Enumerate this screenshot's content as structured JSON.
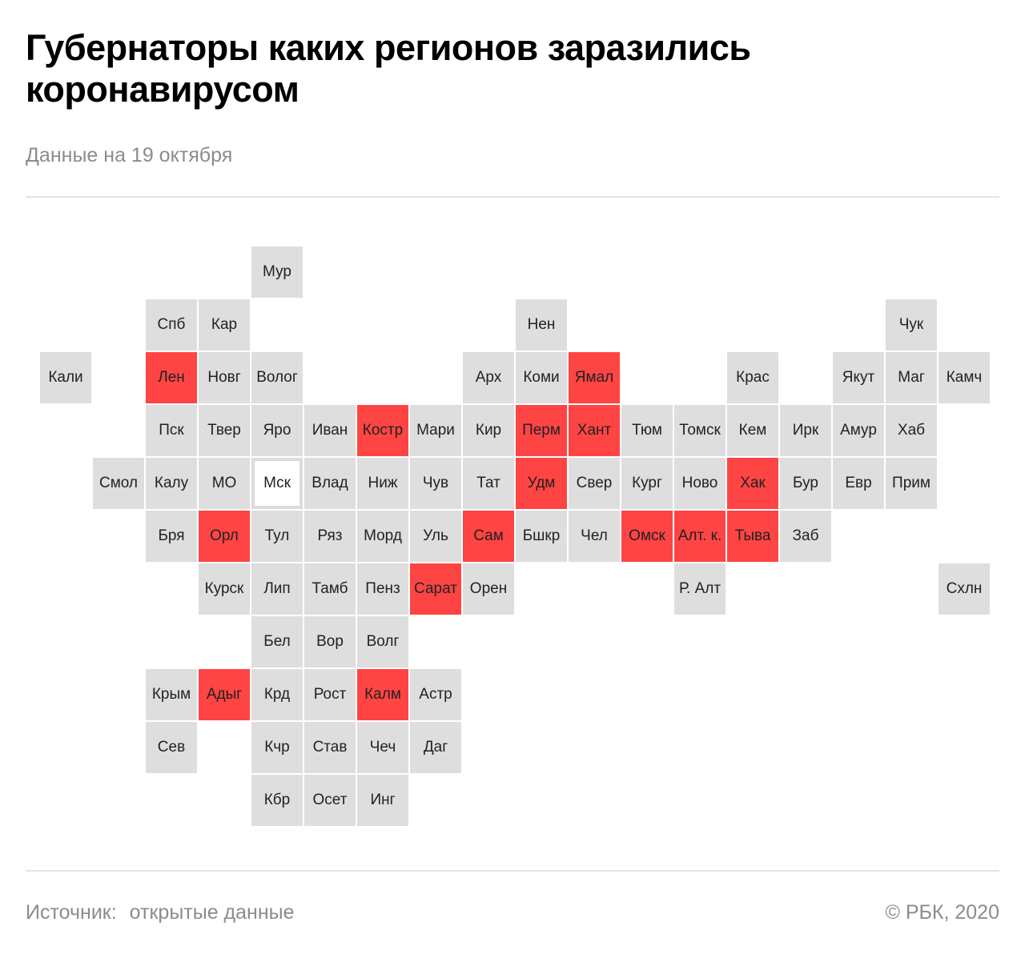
{
  "header": {
    "title": "Губернаторы каких регионов заразились коронавирусом",
    "subtitle": "Данные на 19 октября"
  },
  "colors": {
    "infected": "#ff4444",
    "default": "#dedede"
  },
  "footer": {
    "source_label": "Источник:",
    "source_value": "открытые данные",
    "copyright": "© РБК, 2020"
  },
  "regions": [
    {
      "label": "Мур",
      "row": 0,
      "col": 4,
      "infected": false
    },
    {
      "label": "Спб",
      "row": 1,
      "col": 2,
      "infected": false
    },
    {
      "label": "Кар",
      "row": 1,
      "col": 3,
      "infected": false
    },
    {
      "label": "Нен",
      "row": 1,
      "col": 9,
      "infected": false
    },
    {
      "label": "Чук",
      "row": 1,
      "col": 16,
      "infected": false
    },
    {
      "label": "Кали",
      "row": 2,
      "col": 0,
      "infected": false
    },
    {
      "label": "Лен",
      "row": 2,
      "col": 2,
      "infected": true
    },
    {
      "label": "Новг",
      "row": 2,
      "col": 3,
      "infected": false
    },
    {
      "label": "Волог",
      "row": 2,
      "col": 4,
      "infected": false
    },
    {
      "label": "Арх",
      "row": 2,
      "col": 8,
      "infected": false
    },
    {
      "label": "Коми",
      "row": 2,
      "col": 9,
      "infected": false
    },
    {
      "label": "Ямал",
      "row": 2,
      "col": 10,
      "infected": true
    },
    {
      "label": "Крас",
      "row": 2,
      "col": 13,
      "infected": false
    },
    {
      "label": "Якут",
      "row": 2,
      "col": 15,
      "infected": false
    },
    {
      "label": "Маг",
      "row": 2,
      "col": 16,
      "infected": false
    },
    {
      "label": "Камч",
      "row": 2,
      "col": 17,
      "infected": false
    },
    {
      "label": "Пск",
      "row": 3,
      "col": 2,
      "infected": false
    },
    {
      "label": "Твер",
      "row": 3,
      "col": 3,
      "infected": false
    },
    {
      "label": "Яро",
      "row": 3,
      "col": 4,
      "infected": false
    },
    {
      "label": "Иван",
      "row": 3,
      "col": 5,
      "infected": false
    },
    {
      "label": "Костр",
      "row": 3,
      "col": 6,
      "infected": true
    },
    {
      "label": "Мари",
      "row": 3,
      "col": 7,
      "infected": false
    },
    {
      "label": "Кир",
      "row": 3,
      "col": 8,
      "infected": false
    },
    {
      "label": "Перм",
      "row": 3,
      "col": 9,
      "infected": true
    },
    {
      "label": "Хант",
      "row": 3,
      "col": 10,
      "infected": true
    },
    {
      "label": "Тюм",
      "row": 3,
      "col": 11,
      "infected": false
    },
    {
      "label": "Томск",
      "row": 3,
      "col": 12,
      "infected": false
    },
    {
      "label": "Кем",
      "row": 3,
      "col": 13,
      "infected": false
    },
    {
      "label": "Ирк",
      "row": 3,
      "col": 14,
      "infected": false
    },
    {
      "label": "Амур",
      "row": 3,
      "col": 15,
      "infected": false
    },
    {
      "label": "Хаб",
      "row": 3,
      "col": 16,
      "infected": false
    },
    {
      "label": "Смол",
      "row": 4,
      "col": 1,
      "infected": false
    },
    {
      "label": "Калу",
      "row": 4,
      "col": 2,
      "infected": false
    },
    {
      "label": "МО",
      "row": 4,
      "col": 3,
      "infected": false
    },
    {
      "label": "Мск",
      "row": 4,
      "col": 4,
      "infected": false,
      "capital": true
    },
    {
      "label": "Влад",
      "row": 4,
      "col": 5,
      "infected": false
    },
    {
      "label": "Ниж",
      "row": 4,
      "col": 6,
      "infected": false
    },
    {
      "label": "Чув",
      "row": 4,
      "col": 7,
      "infected": false
    },
    {
      "label": "Тат",
      "row": 4,
      "col": 8,
      "infected": false
    },
    {
      "label": "Удм",
      "row": 4,
      "col": 9,
      "infected": true
    },
    {
      "label": "Свер",
      "row": 4,
      "col": 10,
      "infected": false
    },
    {
      "label": "Кург",
      "row": 4,
      "col": 11,
      "infected": false
    },
    {
      "label": "Ново",
      "row": 4,
      "col": 12,
      "infected": false
    },
    {
      "label": "Хак",
      "row": 4,
      "col": 13,
      "infected": true
    },
    {
      "label": "Бур",
      "row": 4,
      "col": 14,
      "infected": false
    },
    {
      "label": "Евр",
      "row": 4,
      "col": 15,
      "infected": false
    },
    {
      "label": "Прим",
      "row": 4,
      "col": 16,
      "infected": false
    },
    {
      "label": "Бря",
      "row": 5,
      "col": 2,
      "infected": false
    },
    {
      "label": "Орл",
      "row": 5,
      "col": 3,
      "infected": true
    },
    {
      "label": "Тул",
      "row": 5,
      "col": 4,
      "infected": false
    },
    {
      "label": "Ряз",
      "row": 5,
      "col": 5,
      "infected": false
    },
    {
      "label": "Морд",
      "row": 5,
      "col": 6,
      "infected": false
    },
    {
      "label": "Уль",
      "row": 5,
      "col": 7,
      "infected": false
    },
    {
      "label": "Сам",
      "row": 5,
      "col": 8,
      "infected": true
    },
    {
      "label": "Бшкр",
      "row": 5,
      "col": 9,
      "infected": false
    },
    {
      "label": "Чел",
      "row": 5,
      "col": 10,
      "infected": false
    },
    {
      "label": "Омск",
      "row": 5,
      "col": 11,
      "infected": true
    },
    {
      "label": "Алт. к.",
      "row": 5,
      "col": 12,
      "infected": true
    },
    {
      "label": "Тыва",
      "row": 5,
      "col": 13,
      "infected": true
    },
    {
      "label": "Заб",
      "row": 5,
      "col": 14,
      "infected": false
    },
    {
      "label": "Курск",
      "row": 6,
      "col": 3,
      "infected": false
    },
    {
      "label": "Лип",
      "row": 6,
      "col": 4,
      "infected": false
    },
    {
      "label": "Тамб",
      "row": 6,
      "col": 5,
      "infected": false
    },
    {
      "label": "Пенз",
      "row": 6,
      "col": 6,
      "infected": false
    },
    {
      "label": "Сарат",
      "row": 6,
      "col": 7,
      "infected": true
    },
    {
      "label": "Орен",
      "row": 6,
      "col": 8,
      "infected": false
    },
    {
      "label": "Р. Алт",
      "row": 6,
      "col": 12,
      "infected": false
    },
    {
      "label": "Схлн",
      "row": 6,
      "col": 17,
      "infected": false
    },
    {
      "label": "Бел",
      "row": 7,
      "col": 4,
      "infected": false
    },
    {
      "label": "Вор",
      "row": 7,
      "col": 5,
      "infected": false
    },
    {
      "label": "Волг",
      "row": 7,
      "col": 6,
      "infected": false
    },
    {
      "label": "Крым",
      "row": 8,
      "col": 2,
      "infected": false
    },
    {
      "label": "Адыг",
      "row": 8,
      "col": 3,
      "infected": true
    },
    {
      "label": "Крд",
      "row": 8,
      "col": 4,
      "infected": false
    },
    {
      "label": "Рост",
      "row": 8,
      "col": 5,
      "infected": false
    },
    {
      "label": "Калм",
      "row": 8,
      "col": 6,
      "infected": true
    },
    {
      "label": "Астр",
      "row": 8,
      "col": 7,
      "infected": false
    },
    {
      "label": "Сев",
      "row": 9,
      "col": 2,
      "infected": false
    },
    {
      "label": "Кчр",
      "row": 9,
      "col": 4,
      "infected": false
    },
    {
      "label": "Став",
      "row": 9,
      "col": 5,
      "infected": false
    },
    {
      "label": "Чеч",
      "row": 9,
      "col": 6,
      "infected": false
    },
    {
      "label": "Даг",
      "row": 9,
      "col": 7,
      "infected": false
    },
    {
      "label": "Кбр",
      "row": 10,
      "col": 4,
      "infected": false
    },
    {
      "label": "Осет",
      "row": 10,
      "col": 5,
      "infected": false
    },
    {
      "label": "Инг",
      "row": 10,
      "col": 6,
      "infected": false
    }
  ]
}
